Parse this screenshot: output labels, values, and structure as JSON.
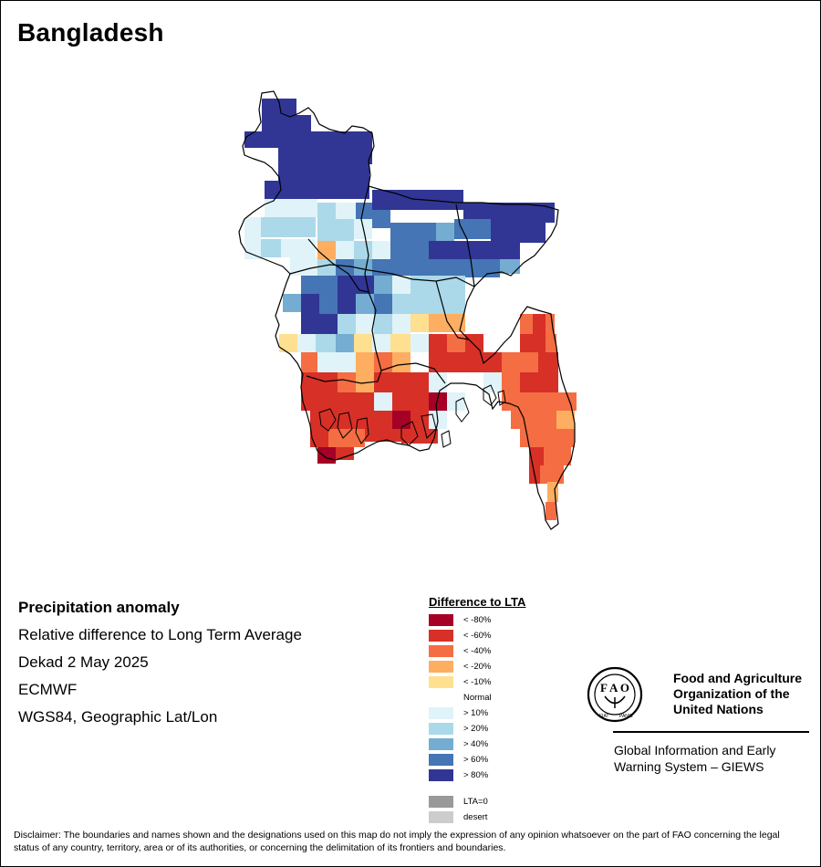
{
  "title": "Bangladesh",
  "info": {
    "heading": "Precipitation anomaly",
    "line1": "Relative difference to Long Term Average",
    "line2": "Dekad 2 May 2025",
    "line3": "ECMWF",
    "line4": "WGS84, Geographic Lat/Lon"
  },
  "legend": {
    "title": "Difference to LTA",
    "classes": [
      {
        "label": "< -80%",
        "color": "#a50026"
      },
      {
        "label": "< -60%",
        "color": "#d73027"
      },
      {
        "label": "< -40%",
        "color": "#f46d43"
      },
      {
        "label": "< -20%",
        "color": "#fdae61"
      },
      {
        "label": "< -10%",
        "color": "#fee090"
      },
      {
        "label": "Normal",
        "color": "#ffffff"
      },
      {
        "label": "> 10%",
        "color": "#e0f3f8"
      },
      {
        "label": "> 20%",
        "color": "#abd9e9"
      },
      {
        "label": "> 40%",
        "color": "#74add1"
      },
      {
        "label": "> 60%",
        "color": "#4575b4"
      },
      {
        "label": "> 80%",
        "color": "#313695"
      }
    ],
    "extra": [
      {
        "label": "LTA=0",
        "color": "#999999"
      },
      {
        "label": "desert",
        "color": "#cccccc"
      }
    ]
  },
  "org": {
    "name": "Food and Agriculture Organization of the United Nations",
    "system": "Global Information and Early Warning System – GIEWS"
  },
  "disclaimer": "Disclaimer: The boundaries and names shown and the designations used on this map do not imply the expression of any opinion whatsoever on the part of FAO concerning the legal status of any country, territory, area or of its authorities, or concerning the delimitation of its frontiers and boundaries."
}
